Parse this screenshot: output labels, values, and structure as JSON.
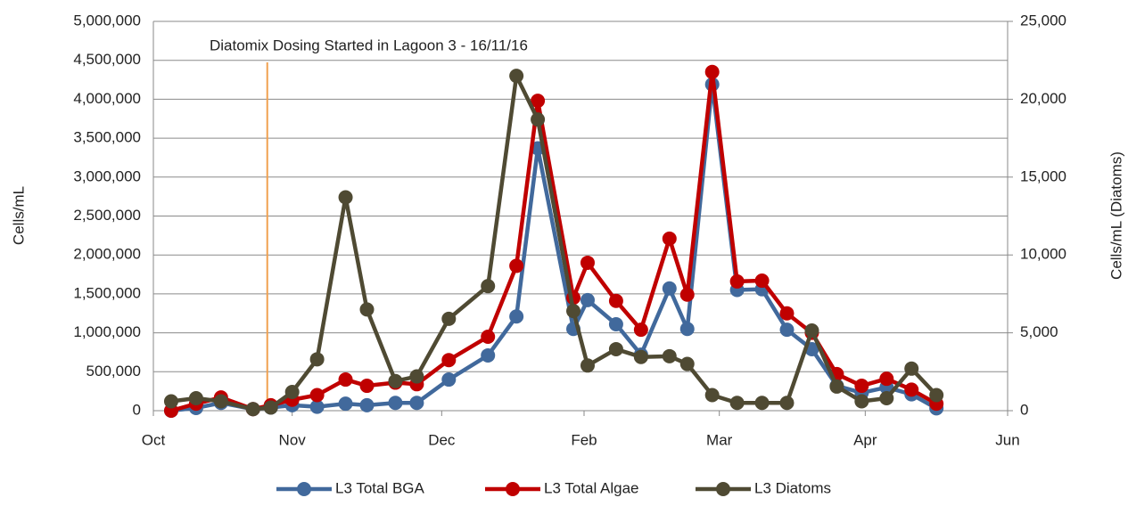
{
  "chart_data": {
    "type": "line",
    "y_label": "Cells/mL",
    "y2_label": "Cells/mL (Diatoms)",
    "annotation": {
      "text": "Diatomix Dosing Started in Lagoon 3 - 16/11/16",
      "x": 32,
      "color": "#f0a050"
    },
    "x": [
      5,
      12,
      19,
      28,
      33,
      39,
      46,
      54,
      60,
      68,
      74,
      83,
      94,
      102,
      108,
      118,
      122,
      130,
      137,
      145,
      150,
      157,
      164,
      171,
      178,
      185,
      192,
      199,
      206,
      213,
      220
    ],
    "xlim": [
      0,
      240
    ],
    "xticks": [
      {
        "value": 0,
        "label": "Oct"
      },
      {
        "value": 39,
        "label": "Nov"
      },
      {
        "value": 81,
        "label": "Dec"
      },
      {
        "value": 121,
        "label": "Feb"
      },
      {
        "value": 159,
        "label": "Mar"
      },
      {
        "value": 200,
        "label": "Apr"
      },
      {
        "value": 240,
        "label": "Jun"
      }
    ],
    "ylim": [
      0,
      5000000
    ],
    "yticks": [
      0,
      {
        "value": 500000,
        "label": "500,000"
      },
      {
        "value": 1000000,
        "label": "1,000,000"
      },
      {
        "value": 1500000,
        "label": "1,500,000"
      },
      {
        "value": 2000000,
        "label": "2,000,000"
      },
      {
        "value": 2500000,
        "label": "2,500,000"
      },
      {
        "value": 3000000,
        "label": "3,000,000"
      },
      {
        "value": 3500000,
        "label": "3,500,000"
      },
      {
        "value": 4000000,
        "label": "4,000,000"
      },
      {
        "value": 4500000,
        "label": "4,500,000"
      },
      {
        "value": 5000000,
        "label": "5,000,000"
      }
    ],
    "y2lim": [
      0,
      25000
    ],
    "y2ticks": [
      0,
      {
        "value": 5000,
        "label": "5,000"
      },
      {
        "value": 10000,
        "label": "10,000"
      },
      {
        "value": 15000,
        "label": "15,000"
      },
      {
        "value": 20000,
        "label": "20,000"
      },
      {
        "value": 25000,
        "label": "25,000"
      }
    ],
    "grid": true,
    "series": [
      {
        "name": "L3 Total BGA",
        "color": "#41699c",
        "values": [
          0,
          35000,
          100000,
          20000,
          40000,
          70000,
          50000,
          90000,
          70000,
          100000,
          100000,
          400000,
          710000,
          1210000,
          3370000,
          1050000,
          1420000,
          1110000,
          720000,
          1570000,
          1050000,
          4190000,
          1550000,
          1560000,
          1040000,
          790000,
          320000,
          230000,
          300000,
          210000,
          30000
        ]
      },
      {
        "name": "L3 Total Algae",
        "color": "#c00000",
        "values": [
          0,
          90000,
          170000,
          20000,
          70000,
          140000,
          200000,
          400000,
          320000,
          360000,
          340000,
          650000,
          950000,
          1860000,
          3980000,
          1450000,
          1900000,
          1410000,
          1040000,
          2210000,
          1490000,
          4350000,
          1660000,
          1670000,
          1250000,
          1000000,
          470000,
          320000,
          410000,
          270000,
          90000
        ]
      },
      {
        "name": "L3 Diatoms",
        "color": "#4f4a33",
        "axis": "y2",
        "values": [
          600,
          800,
          600,
          100,
          200,
          1200,
          3300,
          13700,
          6500,
          1900,
          2200,
          5900,
          8000,
          21500,
          18700,
          6400,
          2900,
          3950,
          3450,
          3500,
          3000,
          1000,
          500,
          500,
          500,
          5150,
          1550,
          600,
          800,
          2700,
          1000
        ]
      }
    ]
  }
}
